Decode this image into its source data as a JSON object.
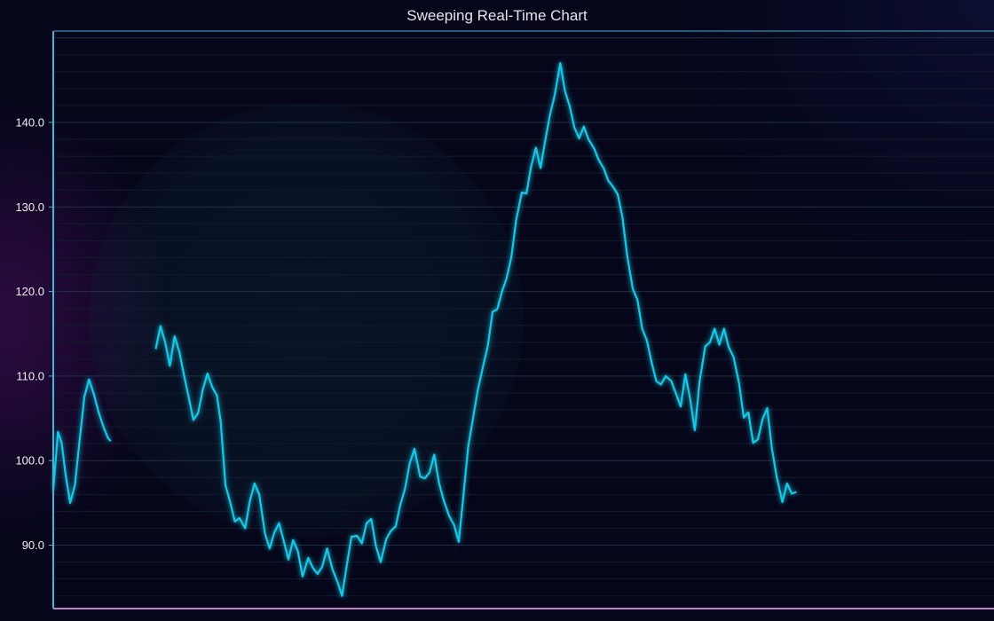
{
  "chart_data": {
    "type": "line",
    "title": "Sweeping Real-Time Chart",
    "xlabel": "",
    "ylabel": "",
    "ylim": [
      82.5,
      150.8
    ],
    "xlim": [
      0,
      1000
    ],
    "grid": true,
    "colors": {
      "line": "#13c8e6",
      "background": "#05061a",
      "grid": "#1a2a38",
      "axis_left_top": "#3fb7d8",
      "axis_bottom": "#c77ac9",
      "tick_text": "#f0f0f0",
      "title_text": "#e6e6ee"
    },
    "y_ticks": [
      {
        "value": 90,
        "label": "90.0"
      },
      {
        "value": 100,
        "label": "100.0"
      },
      {
        "value": 110,
        "label": "110.0"
      },
      {
        "value": 120,
        "label": "120.0"
      },
      {
        "value": 130,
        "label": "130.0"
      },
      {
        "value": 140,
        "label": "140.0"
      }
    ],
    "series": [
      {
        "points_before_gap": [
          [
            0,
            96.5
          ],
          [
            5,
            103.4
          ],
          [
            9,
            102.1
          ],
          [
            13,
            98.4
          ],
          [
            18,
            95.0
          ],
          [
            23,
            97.1
          ],
          [
            28,
            102.4
          ],
          [
            33,
            107.5
          ],
          [
            38,
            109.6
          ],
          [
            43,
            107.9
          ],
          [
            48,
            105.8
          ],
          [
            53,
            104.1
          ],
          [
            58,
            102.7
          ],
          [
            61,
            102.3
          ]
        ],
        "points_after_gap": [
          [
            109,
            113.2
          ],
          [
            114,
            115.9
          ],
          [
            119,
            114.0
          ],
          [
            124,
            111.2
          ],
          [
            129,
            114.7
          ],
          [
            134,
            112.9
          ],
          [
            139,
            110.1
          ],
          [
            144,
            107.5
          ],
          [
            149,
            104.8
          ],
          [
            154,
            105.6
          ],
          [
            159,
            108.4
          ],
          [
            164,
            110.3
          ],
          [
            169,
            108.7
          ],
          [
            174,
            107.7
          ],
          [
            178,
            104.6
          ],
          [
            183,
            97.1
          ],
          [
            188,
            95.1
          ],
          [
            193,
            92.8
          ],
          [
            198,
            93.2
          ],
          [
            204,
            92.0
          ],
          [
            209,
            95.2
          ],
          [
            214,
            97.3
          ],
          [
            219,
            96.0
          ],
          [
            225,
            91.4
          ],
          [
            230,
            89.6
          ],
          [
            235,
            91.5
          ],
          [
            240,
            92.6
          ],
          [
            245,
            90.5
          ],
          [
            250,
            88.3
          ],
          [
            255,
            90.6
          ],
          [
            260,
            89.3
          ],
          [
            265,
            86.3
          ],
          [
            271,
            88.5
          ],
          [
            276,
            87.3
          ],
          [
            281,
            86.6
          ],
          [
            286,
            87.5
          ],
          [
            291,
            89.6
          ],
          [
            297,
            87.1
          ],
          [
            302,
            85.7
          ],
          [
            307,
            84.0
          ],
          [
            312,
            87.6
          ],
          [
            317,
            91.0
          ],
          [
            323,
            91.1
          ],
          [
            328,
            90.2
          ],
          [
            333,
            92.6
          ],
          [
            338,
            93.1
          ],
          [
            343,
            89.9
          ],
          [
            348,
            88.0
          ],
          [
            354,
            90.7
          ],
          [
            359,
            91.7
          ],
          [
            364,
            92.2
          ],
          [
            369,
            94.8
          ],
          [
            374,
            96.7
          ],
          [
            379,
            99.7
          ],
          [
            384,
            101.4
          ],
          [
            390,
            98.1
          ],
          [
            395,
            97.9
          ],
          [
            400,
            98.6
          ],
          [
            405,
            100.7
          ],
          [
            410,
            97.4
          ],
          [
            415,
            95.3
          ],
          [
            421,
            93.4
          ],
          [
            426,
            92.4
          ],
          [
            431,
            90.4
          ],
          [
            436,
            95.9
          ],
          [
            441,
            101.6
          ],
          [
            446,
            104.9
          ],
          [
            451,
            108.2
          ],
          [
            457,
            111.2
          ],
          [
            462,
            113.6
          ],
          [
            467,
            117.6
          ],
          [
            472,
            117.9
          ],
          [
            477,
            120.0
          ],
          [
            482,
            121.6
          ],
          [
            487,
            124.1
          ],
          [
            492,
            128.4
          ],
          [
            498,
            131.7
          ],
          [
            503,
            131.6
          ],
          [
            508,
            134.8
          ],
          [
            513,
            137.0
          ],
          [
            518,
            134.6
          ],
          [
            523,
            137.9
          ],
          [
            528,
            140.9
          ],
          [
            533,
            143.2
          ],
          [
            539,
            147.0
          ],
          [
            544,
            143.7
          ],
          [
            549,
            141.9
          ],
          [
            554,
            139.4
          ],
          [
            559,
            138.1
          ],
          [
            564,
            139.5
          ],
          [
            569,
            138.0
          ],
          [
            575,
            136.9
          ],
          [
            580,
            135.5
          ],
          [
            585,
            134.6
          ],
          [
            590,
            133.1
          ],
          [
            595,
            132.4
          ],
          [
            600,
            131.5
          ],
          [
            605,
            128.8
          ],
          [
            610,
            124.3
          ],
          [
            616,
            120.3
          ],
          [
            621,
            119.0
          ],
          [
            626,
            115.6
          ],
          [
            631,
            114.2
          ],
          [
            636,
            111.6
          ],
          [
            641,
            109.4
          ],
          [
            646,
            109.0
          ],
          [
            651,
            110.0
          ],
          [
            657,
            109.4
          ],
          [
            662,
            107.9
          ],
          [
            667,
            106.4
          ],
          [
            672,
            110.2
          ],
          [
            677,
            107.3
          ],
          [
            682,
            103.6
          ],
          [
            687,
            109.3
          ],
          [
            693,
            113.5
          ],
          [
            698,
            114.0
          ],
          [
            703,
            115.6
          ],
          [
            708,
            113.7
          ],
          [
            713,
            115.6
          ],
          [
            718,
            113.4
          ],
          [
            723,
            112.3
          ],
          [
            729,
            109.2
          ],
          [
            734,
            105.1
          ],
          [
            739,
            105.7
          ],
          [
            744,
            102.1
          ],
          [
            749,
            102.5
          ],
          [
            754,
            104.9
          ],
          [
            759,
            106.2
          ],
          [
            764,
            101.4
          ],
          [
            769,
            98.1
          ],
          [
            775,
            95.1
          ],
          [
            780,
            97.3
          ],
          [
            785,
            96.1
          ],
          [
            790,
            96.3
          ]
        ]
      }
    ]
  }
}
